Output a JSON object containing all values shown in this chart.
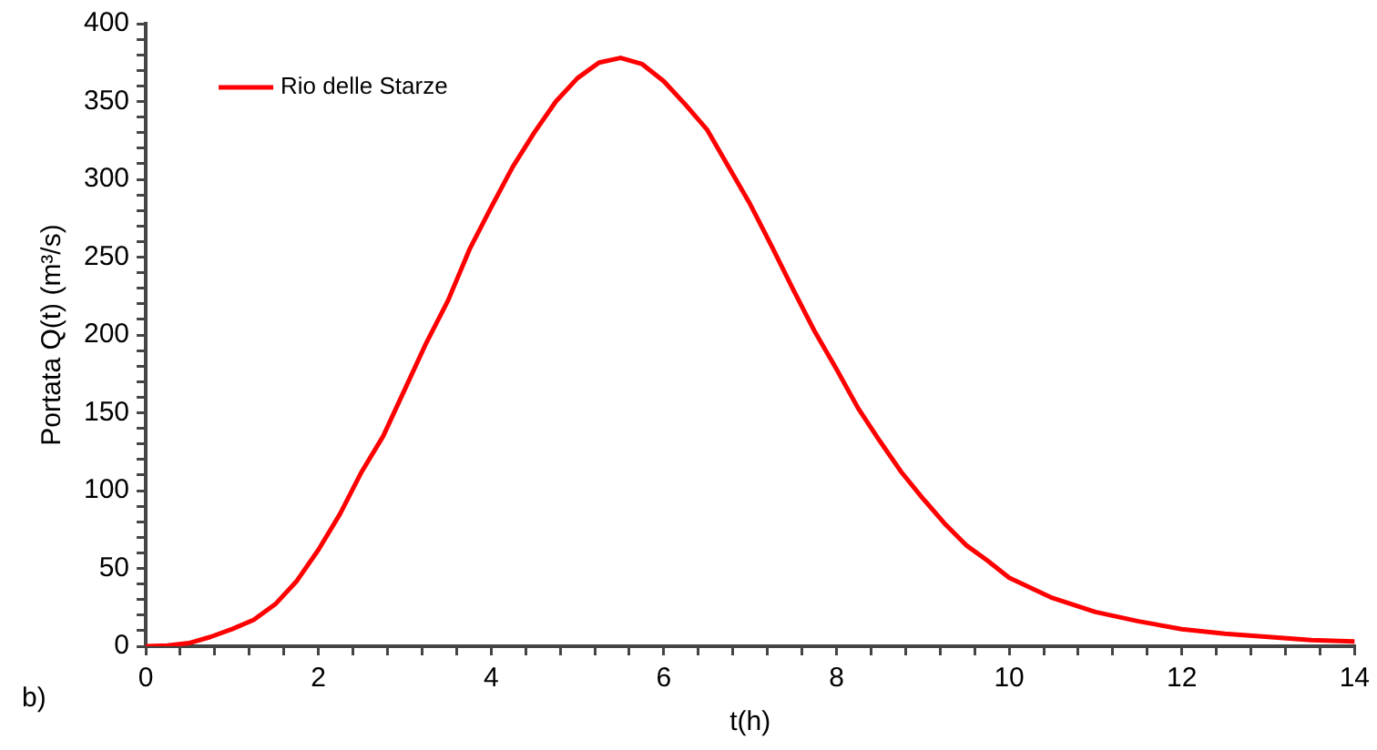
{
  "chart_data": {
    "type": "line",
    "xlabel": "t(h)",
    "ylabel": "Portata Q(t) (m³/s)",
    "annotations": [
      "b)"
    ],
    "legend": "top left",
    "grid": false,
    "marker": "none",
    "line_style": "solid",
    "xlim": [
      0,
      14
    ],
    "ylim": [
      0,
      400
    ],
    "xticks": [
      0,
      {
        "value": 0.4,
        "label": null
      },
      {
        "value": 0.8,
        "label": null
      },
      {
        "value": 1.2,
        "label": null
      },
      {
        "value": 1.6,
        "label": null
      },
      2,
      {
        "value": 2.4,
        "label": null
      },
      {
        "value": 2.8,
        "label": null
      },
      {
        "value": 3.2,
        "label": null
      },
      {
        "value": 3.6,
        "label": null
      },
      4,
      {
        "value": 4.4,
        "label": null
      },
      {
        "value": 4.8,
        "label": null
      },
      {
        "value": 5.2,
        "label": null
      },
      {
        "value": 5.6,
        "label": null
      },
      6,
      {
        "value": 6.4,
        "label": null
      },
      {
        "value": 6.8,
        "label": null
      },
      {
        "value": 7.2,
        "label": null
      },
      {
        "value": 7.6,
        "label": null
      },
      8,
      {
        "value": 8.4,
        "label": null
      },
      {
        "value": 8.8,
        "label": null
      },
      {
        "value": 9.2,
        "label": null
      },
      {
        "value": 9.6,
        "label": null
      },
      10,
      {
        "value": 10.4,
        "label": null
      },
      {
        "value": 10.8,
        "label": null
      },
      {
        "value": 11.2,
        "label": null
      },
      {
        "value": 11.6,
        "label": null
      },
      12,
      {
        "value": 12.4,
        "label": null
      },
      {
        "value": 12.8,
        "label": null
      },
      {
        "value": 13.2,
        "label": null
      },
      {
        "value": 13.6,
        "label": null
      },
      14
    ],
    "yticks": [
      0,
      {
        "value": 10,
        "label": null
      },
      {
        "value": 20,
        "label": null
      },
      {
        "value": 30,
        "label": null
      },
      {
        "value": 40,
        "label": null
      },
      50,
      {
        "value": 60,
        "label": null
      },
      {
        "value": 70,
        "label": null
      },
      {
        "value": 80,
        "label": null
      },
      {
        "value": 90,
        "label": null
      },
      100,
      {
        "value": 110,
        "label": null
      },
      {
        "value": 120,
        "label": null
      },
      {
        "value": 130,
        "label": null
      },
      {
        "value": 140,
        "label": null
      },
      150,
      {
        "value": 160,
        "label": null
      },
      {
        "value": 170,
        "label": null
      },
      {
        "value": 180,
        "label": null
      },
      {
        "value": 190,
        "label": null
      },
      200,
      {
        "value": 210,
        "label": null
      },
      {
        "value": 220,
        "label": null
      },
      {
        "value": 230,
        "label": null
      },
      {
        "value": 240,
        "label": null
      },
      250,
      {
        "value": 260,
        "label": null
      },
      {
        "value": 270,
        "label": null
      },
      {
        "value": 280,
        "label": null
      },
      {
        "value": 290,
        "label": null
      },
      300,
      {
        "value": 310,
        "label": null
      },
      {
        "value": 320,
        "label": null
      },
      {
        "value": 330,
        "label": null
      },
      {
        "value": 340,
        "label": null
      },
      350,
      {
        "value": 360,
        "label": null
      },
      {
        "value": 370,
        "label": null
      },
      {
        "value": 380,
        "label": null
      },
      {
        "value": 390,
        "label": null
      },
      400
    ],
    "x": [
      0,
      0.25,
      0.5,
      0.75,
      1,
      1.25,
      1.5,
      1.75,
      2,
      2.25,
      2.5,
      2.75,
      3,
      3.25,
      3.5,
      3.75,
      4,
      4.25,
      4.5,
      4.75,
      5,
      5.25,
      5.5,
      5.75,
      6,
      6.25,
      6.5,
      6.75,
      7,
      7.25,
      7.5,
      7.75,
      8,
      8.25,
      8.5,
      8.75,
      9,
      9.25,
      9.5,
      9.75,
      10,
      10.5,
      11,
      11.5,
      12,
      12.5,
      13,
      13.5,
      14
    ],
    "series": [
      {
        "name": "Rio delle Starze",
        "color": "#ff0000",
        "values": [
          0,
          0.5,
          2,
          6,
          11,
          17,
          27,
          42,
          62,
          85,
          112,
          135,
          165,
          195,
          222,
          255,
          282,
          308,
          330,
          350,
          365,
          375,
          378,
          374,
          363,
          348,
          332,
          308,
          284,
          257,
          229,
          202,
          178,
          153,
          132,
          112,
          95,
          79,
          65,
          55,
          44,
          31,
          22,
          16,
          11,
          8,
          6,
          4,
          3
        ]
      }
    ]
  }
}
